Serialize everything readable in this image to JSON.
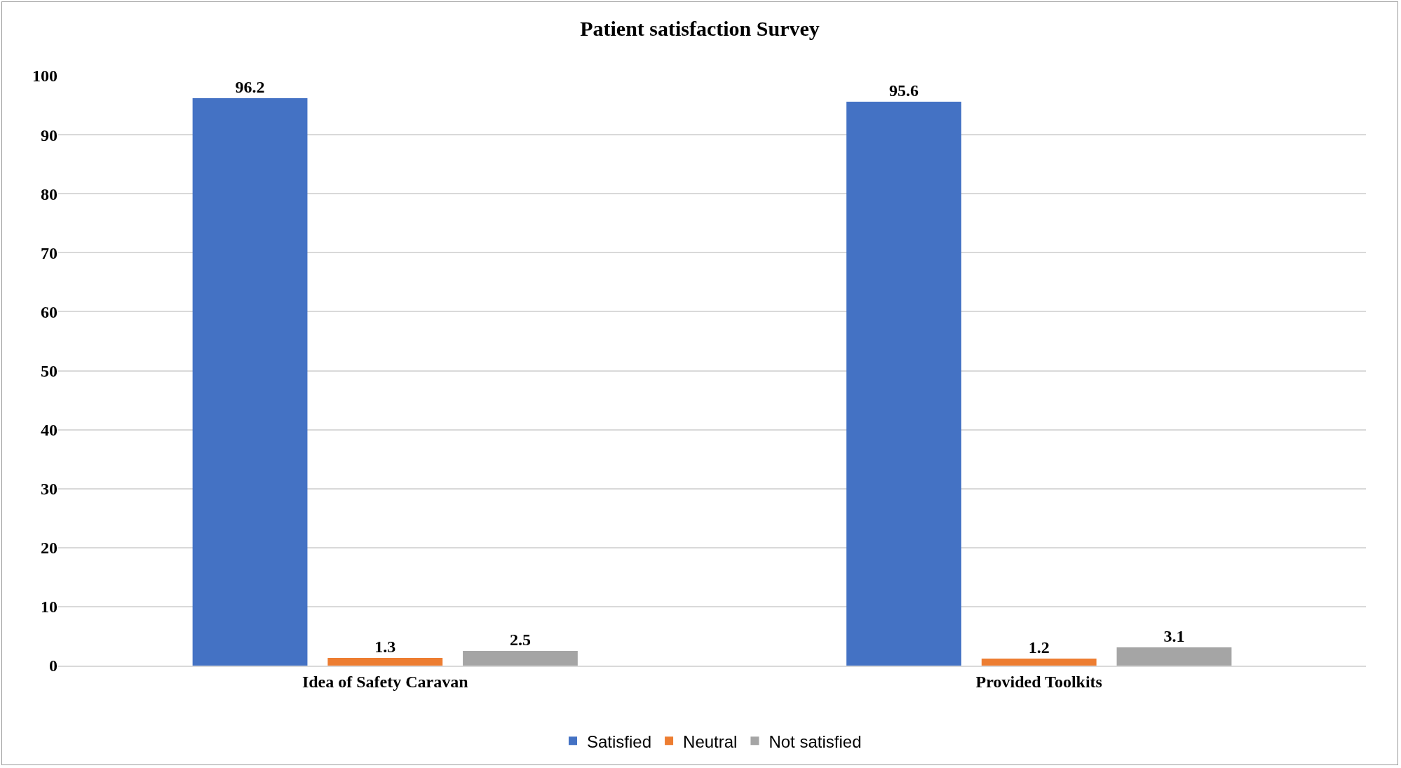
{
  "chart_data": {
    "type": "bar",
    "title": "Patient satisfaction Survey",
    "categories": [
      "Idea of Safety Caravan",
      "Provided Toolkits"
    ],
    "series": [
      {
        "name": "Satisfied",
        "color": "#4472c4",
        "values": [
          96.2,
          95.6
        ]
      },
      {
        "name": "Neutral",
        "color": "#ed7d31",
        "values": [
          1.3,
          1.2
        ]
      },
      {
        "name": "Not satisfied",
        "color": "#a5a5a5",
        "values": [
          2.5,
          3.1
        ]
      }
    ],
    "ylim": [
      0,
      100
    ],
    "yticks": [
      0,
      10,
      20,
      30,
      40,
      50,
      60,
      70,
      80,
      90,
      100
    ],
    "grid": "y",
    "legend": "bottom",
    "data_labels": true
  }
}
